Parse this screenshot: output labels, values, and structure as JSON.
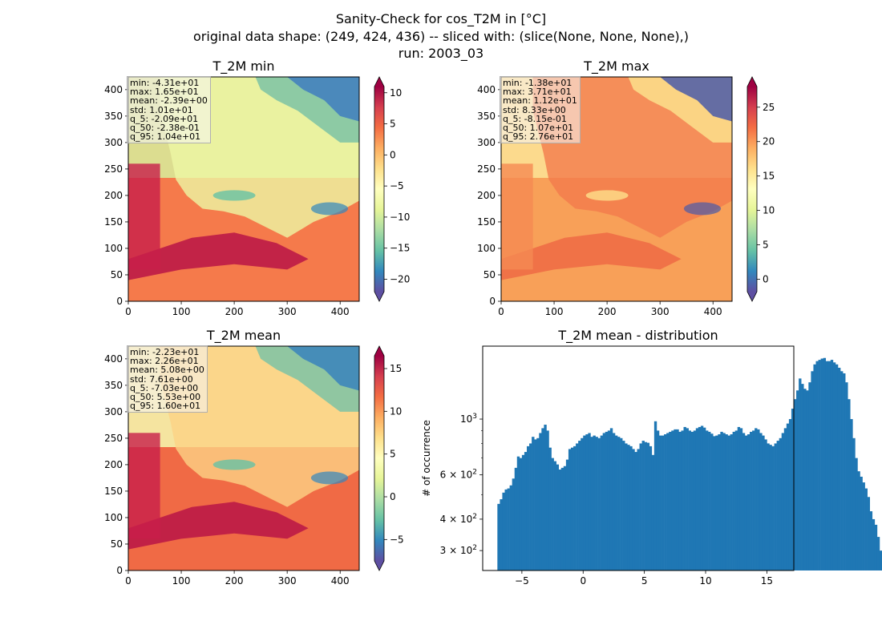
{
  "figure": {
    "title_line1": "Sanity-Check for cos_T2M in [°C]",
    "title_line2": "original data shape: (249, 424, 436) -- sliced with: (slice(None, None, None),)",
    "title_line3": "run: 2003_03"
  },
  "colors": {
    "histogram_bar": "#1f77b4",
    "colormap": "Spectral_r"
  },
  "chart_data": [
    {
      "type": "heatmap",
      "title": "T_2M min",
      "xlim": [
        0,
        436
      ],
      "ylim": [
        0,
        424
      ],
      "x_ticks": [
        "0",
        "100",
        "200",
        "300",
        "400"
      ],
      "y_ticks": [
        "0",
        "50",
        "100",
        "150",
        "200",
        "250",
        "300",
        "350",
        "400"
      ],
      "colorbar": {
        "min": -22.0,
        "max": 11.0,
        "ticks": [
          "−20",
          "−15",
          "−10",
          "−5",
          "0",
          "5",
          "10"
        ],
        "extend": "both"
      },
      "stats": [
        "min: -4.31e+01",
        "max: 1.65e+01",
        "mean: -2.39e+00",
        "std: 1.01e+01",
        "q_5: -2.09e+01",
        "q_50: -2.38e-01",
        "q_95: 1.04e+01"
      ]
    },
    {
      "type": "heatmap",
      "title": "T_2M max",
      "xlim": [
        0,
        436
      ],
      "ylim": [
        0,
        424
      ],
      "x_ticks": [
        "0",
        "100",
        "200",
        "300",
        "400"
      ],
      "y_ticks": [
        "0",
        "50",
        "100",
        "150",
        "200",
        "250",
        "300",
        "350",
        "400"
      ],
      "colorbar": {
        "min": -1.8,
        "max": 28.0,
        "ticks": [
          "0",
          "5",
          "10",
          "15",
          "20",
          "25"
        ],
        "extend": "both"
      },
      "stats": [
        "min: -1.38e+01",
        "max: 3.71e+01",
        "mean: 1.12e+01",
        "std: 8.33e+00",
        "q_5: -8.15e-01",
        "q_50: 1.07e+01",
        "q_95: 2.76e+01"
      ]
    },
    {
      "type": "heatmap",
      "title": "T_2M mean",
      "xlim": [
        0,
        436
      ],
      "ylim": [
        0,
        424
      ],
      "x_ticks": [
        "0",
        "100",
        "200",
        "300",
        "400"
      ],
      "y_ticks": [
        "0",
        "50",
        "100",
        "150",
        "200",
        "250",
        "300",
        "350",
        "400"
      ],
      "colorbar": {
        "min": -7.5,
        "max": 16.5,
        "ticks": [
          "−5",
          "0",
          "5",
          "10",
          "15"
        ],
        "extend": "both"
      },
      "stats": [
        "min: -2.23e+01",
        "max: 2.26e+01",
        "mean: 5.08e+00",
        "std: 7.61e+00",
        "q_5: -7.03e+00",
        "q_50: 5.53e+00",
        "q_95: 1.60e+01"
      ]
    },
    {
      "type": "bar",
      "title": "T_2M mean - distribution",
      "ylabel": "# of occurrence",
      "xlim": [
        -8.2,
        17.2
      ],
      "ylim": [
        250,
        1950
      ],
      "yscale": "log",
      "x_ticks": [
        "−5",
        "0",
        "5",
        "10",
        "15"
      ],
      "y_ticks": [
        {
          "value": 300,
          "base": "3 × 10",
          "exp": "2"
        },
        {
          "value": 400,
          "base": "4 × 10",
          "exp": "2"
        },
        {
          "value": 600,
          "base": "6 × 10",
          "exp": "2"
        },
        {
          "value": 1000,
          "base": "10",
          "exp": "3"
        }
      ],
      "bin_start": -7.0,
      "bin_width": 0.2,
      "counts": [
        460,
        480,
        510,
        525,
        530,
        545,
        580,
        640,
        710,
        700,
        720,
        740,
        780,
        800,
        850,
        830,
        840,
        880,
        920,
        950,
        900,
        770,
        700,
        680,
        660,
        630,
        640,
        650,
        690,
        760,
        770,
        780,
        800,
        820,
        840,
        860,
        870,
        880,
        850,
        860,
        850,
        840,
        860,
        880,
        890,
        900,
        920,
        880,
        860,
        850,
        840,
        820,
        800,
        790,
        780,
        760,
        740,
        760,
        800,
        820,
        810,
        805,
        780,
        720,
        980,
        900,
        860,
        860,
        870,
        880,
        890,
        900,
        910,
        910,
        890,
        900,
        930,
        920,
        900,
        890,
        900,
        920,
        930,
        940,
        925,
        900,
        890,
        875,
        855,
        860,
        870,
        890,
        880,
        870,
        860,
        870,
        890,
        900,
        930,
        920,
        880,
        860,
        870,
        890,
        900,
        920,
        910,
        880,
        860,
        830,
        800,
        790,
        780,
        800,
        820,
        840,
        880,
        920,
        960,
        1000,
        1100,
        1200,
        1300,
        1450,
        1380,
        1320,
        1300,
        1400,
        1550,
        1650,
        1700,
        1720,
        1740,
        1750,
        1700,
        1700,
        1720,
        1680,
        1650,
        1600,
        1550,
        1520,
        1400,
        1200,
        1000,
        840,
        700,
        620,
        590,
        560,
        530,
        490,
        430,
        400,
        380,
        340,
        300
      ]
    }
  ]
}
